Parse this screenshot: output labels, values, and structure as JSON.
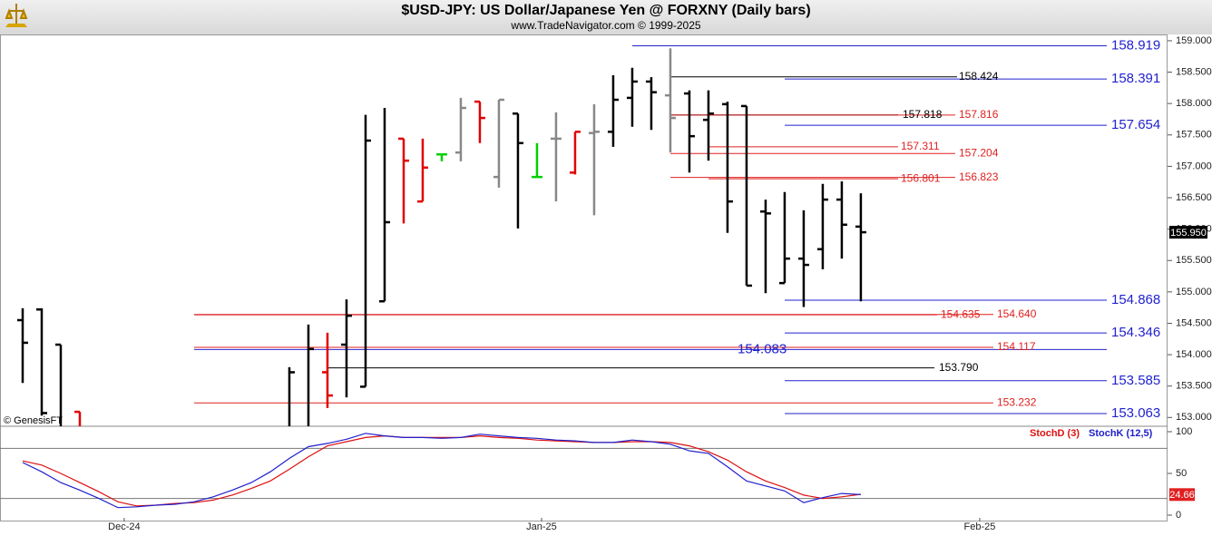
{
  "chart_data": [
    {
      "type": "ohlc",
      "title": "$USD-JPY:  US Dollar/Japanese Yen @ FORXNY  (Daily bars)",
      "subtitle": "www.TradeNavigator.com © 1999-2025",
      "x": [
        0,
        1,
        2,
        3,
        14,
        15,
        16,
        17,
        18,
        19,
        20,
        21,
        22,
        23,
        24,
        25,
        26,
        27,
        28,
        29,
        30,
        31,
        32,
        33,
        34,
        35,
        36,
        37,
        38,
        39,
        40,
        41,
        42,
        43,
        44
      ],
      "open": [
        154.55,
        154.72,
        154.16,
        153.09,
        152.8,
        152.8,
        153.72,
        154.16,
        153.49,
        154.85,
        157.44,
        156.44,
        157.19,
        157.22,
        158.03,
        156.83,
        157.84,
        156.83,
        157.44,
        156.9,
        157.53,
        157.55,
        158.09,
        158.35,
        158.13,
        158.16,
        157.74,
        157.99,
        157.96,
        156.28,
        155.14,
        155.53,
        155.68,
        156.47,
        156.04
      ],
      "high": [
        154.74,
        154.74,
        154.16,
        153.09,
        153.8,
        154.48,
        154.35,
        154.88,
        157.82,
        157.93,
        157.44,
        157.44,
        157.19,
        158.09,
        158.03,
        158.06,
        157.84,
        157.37,
        157.86,
        157.55,
        157.99,
        158.45,
        158.57,
        158.42,
        158.88,
        158.21,
        158.21,
        158.03,
        157.96,
        156.47,
        156.59,
        156.3,
        156.72,
        156.76,
        156.57
      ],
      "low": [
        153.55,
        153.03,
        152.7,
        152.7,
        152.6,
        152.6,
        153.15,
        153.32,
        153.49,
        154.85,
        156.09,
        156.44,
        157.08,
        157.08,
        157.37,
        156.66,
        156.01,
        156.83,
        156.44,
        156.87,
        156.22,
        157.31,
        157.63,
        157.58,
        157.22,
        156.9,
        157.09,
        155.94,
        155.1,
        154.98,
        155.14,
        154.76,
        155.36,
        155.53,
        154.85
      ],
      "close": [
        154.19,
        153.07,
        152.75,
        152.8,
        153.72,
        154.09,
        153.35,
        154.62,
        157.41,
        156.11,
        157.09,
        156.98,
        157.19,
        157.93,
        157.77,
        158.06,
        157.37,
        156.83,
        157.44,
        157.55,
        157.55,
        158.06,
        158.35,
        158.18,
        157.77,
        157.48,
        157.84,
        156.44,
        155.1,
        156.25,
        155.53,
        155.43,
        156.47,
        156.07,
        155.95
      ],
      "colors": [
        "#000000",
        "#000000",
        "#000000",
        "#e00000",
        "#000000",
        "#000000",
        "#e00000",
        "#000000",
        "#000000",
        "#000000",
        "#e00000",
        "#e00000",
        "#00d000",
        "#888888",
        "#e00000",
        "#888888",
        "#000000",
        "#00d000",
        "#888888",
        "#e00000",
        "#888888",
        "#000000",
        "#000000",
        "#000000",
        "#888888",
        "#000000",
        "#000000",
        "#000000",
        "#000000",
        "#000000",
        "#000000",
        "#000000",
        "#000000",
        "#000000",
        "#000000"
      ],
      "xlim": [
        -1.19,
        60.1
      ],
      "ylim": [
        152.86,
        159.1
      ],
      "yticks": [
        {
          "value": 153,
          "label": "153.000"
        },
        {
          "value": 153.5,
          "label": "153.500"
        },
        {
          "value": 154,
          "label": "154.000"
        },
        {
          "value": 154.5,
          "label": "154.500"
        },
        {
          "value": 155,
          "label": "155.000"
        },
        {
          "value": 155.5,
          "label": "155.500"
        },
        {
          "value": 156,
          "label": "156.000"
        },
        {
          "value": 156.5,
          "label": "156.500"
        },
        {
          "value": 157,
          "label": "157.000"
        },
        {
          "value": 157.5,
          "label": "157.500"
        },
        {
          "value": 158,
          "label": "158.000"
        },
        {
          "value": 158.5,
          "label": "158.500"
        },
        {
          "value": 159,
          "label": "159.000"
        }
      ],
      "levels": [
        {
          "value": 158.919,
          "color": "#2222d0"
        },
        {
          "value": 158.424,
          "color": "#000000"
        },
        {
          "value": 158.391,
          "color": "#2222d0"
        },
        {
          "value": 157.818,
          "color": "#000000"
        },
        {
          "value": 157.816,
          "color": "#e02020"
        },
        {
          "value": 157.654,
          "color": "#2222d0"
        },
        {
          "value": 157.311,
          "color": "#e02020"
        },
        {
          "value": 157.204,
          "color": "#e02020"
        },
        {
          "value": 156.823,
          "color": "#e02020"
        },
        {
          "value": 156.801,
          "color": "#e02020"
        },
        {
          "value": 154.868,
          "color": "#2222d0"
        },
        {
          "value": 154.64,
          "label": "154.640",
          "color": "#e02020"
        },
        {
          "value": 154.635,
          "color": "#e02020"
        },
        {
          "value": 154.346,
          "color": "#2222d0"
        },
        {
          "value": 154.117,
          "color": "#e02020"
        },
        {
          "value": 154.083,
          "color": "#2222d0"
        },
        {
          "value": 153.79,
          "label": "153.790",
          "color": "#000000"
        },
        {
          "value": 153.585,
          "color": "#2222d0"
        },
        {
          "value": 153.232,
          "color": "#e02020"
        },
        {
          "value": 153.063,
          "color": "#2222d0"
        }
      ],
      "last_price": {
        "value": 155.95,
        "label": "155.950"
      }
    },
    {
      "type": "line",
      "x": [
        0,
        1,
        2,
        3,
        4,
        5,
        6,
        7,
        8,
        9,
        10,
        11,
        12,
        13,
        14,
        15,
        16,
        17,
        18,
        19,
        20,
        21,
        22,
        23,
        24,
        25,
        26,
        27,
        28,
        29,
        30,
        31,
        32,
        33,
        34,
        35,
        36,
        37,
        38,
        39,
        40,
        41,
        42,
        43,
        44
      ],
      "series": [
        {
          "name": "StochD (3)",
          "color": "#dd1010",
          "values": [
            65,
            60,
            50,
            39,
            28,
            16,
            11,
            12,
            14,
            15,
            18,
            24,
            32,
            41,
            55,
            70,
            83,
            88,
            93,
            95,
            93,
            93,
            93,
            93,
            95,
            93,
            92,
            90,
            89,
            88,
            87,
            87,
            88,
            88,
            87,
            83,
            76,
            66,
            52,
            41,
            33,
            24,
            20,
            22,
            25
          ]
        },
        {
          "name": "StochK (12,5)",
          "color": "#2020cc",
          "values": [
            63,
            52,
            39,
            30,
            20,
            9,
            10,
            12,
            13,
            16,
            22,
            30,
            39,
            52,
            68,
            82,
            86,
            91,
            98,
            95,
            93,
            93,
            92,
            93,
            97,
            95,
            93,
            92,
            90,
            89,
            87,
            87,
            90,
            88,
            85,
            77,
            74,
            58,
            41,
            35,
            29,
            15,
            21,
            26,
            24.66
          ]
        }
      ],
      "xlim": [
        -1.19,
        60.1
      ],
      "xticks": [
        {
          "value": 5.33,
          "label": "Dec-24"
        },
        {
          "value": 27.24,
          "label": "Jan-25"
        },
        {
          "value": 50.24,
          "label": "Feb-25"
        }
      ],
      "ylim": [
        -7.6,
        106.5
      ],
      "yticks": [
        0,
        50,
        100
      ],
      "levels": [
        80,
        20
      ],
      "last_value": 24.66
    }
  ],
  "watermark": "© GenesisFT"
}
